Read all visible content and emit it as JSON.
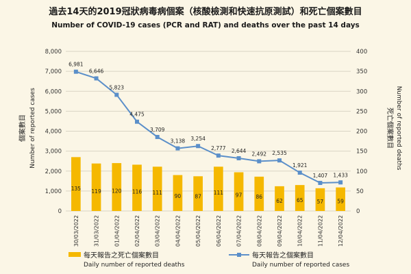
{
  "chart_data": {
    "type": "bar+line",
    "title": "過去14天的2019冠狀病毒病個案（核酸檢測和快速抗原測試）和死亡個案數目",
    "subtitle": "Number of COVID-19 cases (PCR and RAT) and deaths over the past 14 days",
    "categories": [
      "30/03/2022",
      "31/03/2022",
      "01/04/2022",
      "02/04/2022",
      "03/04/2022",
      "04/04/2022",
      "05/04/2022",
      "06/04/2022",
      "07/04/2022",
      "08/04/2022",
      "09/04/2022",
      "10/04/2022",
      "11/04/2022",
      "12/04/2022"
    ],
    "series": [
      {
        "name_zh": "每天報告之死亡個案數目",
        "name": "Daily number of reported deaths",
        "type": "bar",
        "axis": "right",
        "color": "#f5b800",
        "values": [
          135,
          119,
          120,
          116,
          111,
          90,
          87,
          111,
          97,
          86,
          62,
          65,
          57,
          59
        ]
      },
      {
        "name_zh": "每天報告之個案數目",
        "name": "Daily number of reported cases",
        "type": "line",
        "axis": "left",
        "color": "#5b8fc9",
        "values": [
          6981,
          6646,
          5823,
          4475,
          3709,
          3138,
          3254,
          2777,
          2644,
          2492,
          2535,
          1921,
          1407,
          1433
        ]
      }
    ],
    "left_axis": {
      "label_zh": "個案數目",
      "label": "Number of reported cases",
      "ylim": [
        0,
        8000
      ],
      "ticks": [
        "0",
        "1,000",
        "2,000",
        "3,000",
        "4,000",
        "5,000",
        "6,000",
        "7,000",
        "8,000"
      ]
    },
    "right_axis": {
      "label_zh": "死亡個案數目",
      "label": "Number of reported deaths",
      "ylim": [
        0,
        400
      ],
      "ticks": [
        "0",
        "50",
        "100",
        "150",
        "200",
        "250",
        "300",
        "350",
        "400"
      ]
    },
    "grid": true,
    "legend": "bottom"
  }
}
